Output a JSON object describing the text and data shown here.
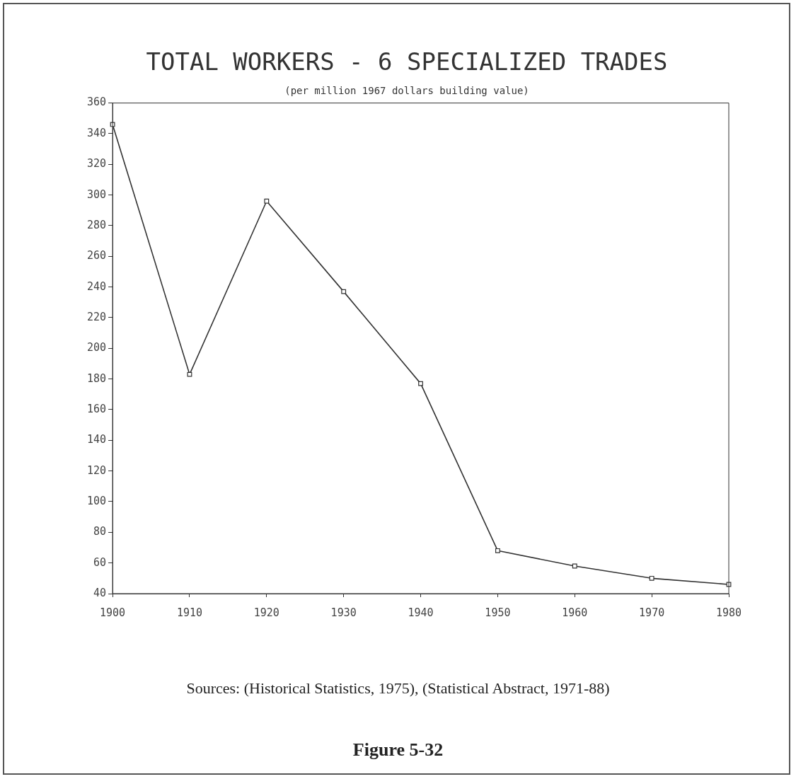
{
  "chart_data": {
    "type": "line",
    "title": "TOTAL WORKERS - 6 SPECIALIZED TRADES",
    "subtitle": "(per million 1967 dollars building value)",
    "x": [
      1900,
      1910,
      1920,
      1930,
      1940,
      1950,
      1960,
      1970,
      1980
    ],
    "values": [
      346,
      183,
      296,
      237,
      177,
      68,
      58,
      50,
      46
    ],
    "color": "#333333",
    "marker": "square",
    "line_style": "solid",
    "grid": false,
    "legend": false,
    "xlim": [
      1900,
      1980
    ],
    "xticks": [
      1900,
      1910,
      1920,
      1930,
      1940,
      1950,
      1960,
      1970,
      1980
    ],
    "ylim": [
      40,
      360
    ],
    "yticks": [
      40,
      60,
      80,
      100,
      120,
      140,
      160,
      180,
      200,
      220,
      240,
      260,
      280,
      300,
      320,
      340,
      360
    ],
    "annotations": [
      "Sources: (Historical Statistics, 1975), (Statistical Abstract, 1971-88)",
      "Figure 5-32"
    ]
  }
}
